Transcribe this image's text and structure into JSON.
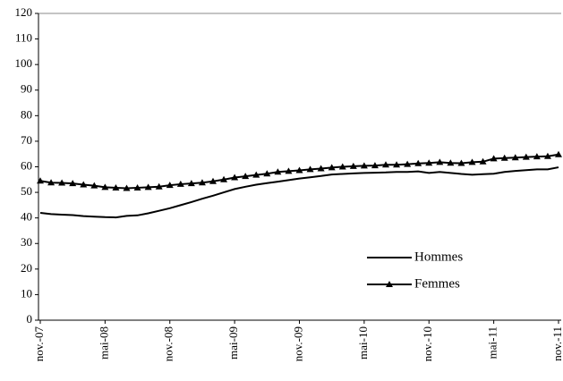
{
  "chart_data": {
    "type": "line",
    "categories": [
      "nov.-07",
      null,
      null,
      null,
      null,
      null,
      "mai-08",
      null,
      null,
      null,
      null,
      null,
      "nov.-08",
      null,
      null,
      null,
      null,
      null,
      "mai-09",
      null,
      null,
      null,
      null,
      null,
      "nov.-09",
      null,
      null,
      null,
      null,
      null,
      "mai-10",
      null,
      null,
      null,
      null,
      null,
      "nov.-10",
      null,
      null,
      null,
      null,
      null,
      "mai-11",
      null,
      null,
      null,
      null,
      null,
      "nov.-11"
    ],
    "series": [
      {
        "name": "Hommes",
        "color": "#000000",
        "marker": "none",
        "values": [
          42,
          41.5,
          41.3,
          41.1,
          40.7,
          40.5,
          40.3,
          40.2,
          40.8,
          41,
          41.8,
          42.8,
          43.8,
          45,
          46.2,
          47.5,
          48.7,
          50,
          51.3,
          52.2,
          53,
          53.6,
          54.2,
          54.8,
          55.4,
          55.9,
          56.4,
          57,
          57.2,
          57.4,
          57.6,
          57.7,
          57.8,
          58,
          58,
          58.2,
          57.6,
          58,
          57.6,
          57.2,
          56.9,
          57.1,
          57.3,
          58,
          58.4,
          58.7,
          59,
          59,
          59.8
        ]
      },
      {
        "name": "Femmes",
        "color": "#000000",
        "marker": "triangle",
        "values": [
          54.5,
          53.8,
          53.7,
          53.5,
          53,
          52.6,
          52,
          51.8,
          51.6,
          51.8,
          52,
          52.2,
          52.8,
          53.2,
          53.5,
          53.8,
          54.3,
          55,
          55.8,
          56.3,
          56.8,
          57.3,
          58,
          58.3,
          58.6,
          59,
          59.3,
          59.7,
          60,
          60.2,
          60.4,
          60.5,
          60.8,
          60.8,
          61,
          61.3,
          61.5,
          61.8,
          61.5,
          61.4,
          61.8,
          62,
          63.2,
          63.4,
          63.6,
          63.8,
          64,
          64.1,
          64.8
        ]
      }
    ],
    "ylim": [
      0,
      120
    ],
    "yticks": [
      0,
      10,
      20,
      30,
      40,
      50,
      60,
      70,
      80,
      90,
      100,
      110,
      120
    ]
  }
}
